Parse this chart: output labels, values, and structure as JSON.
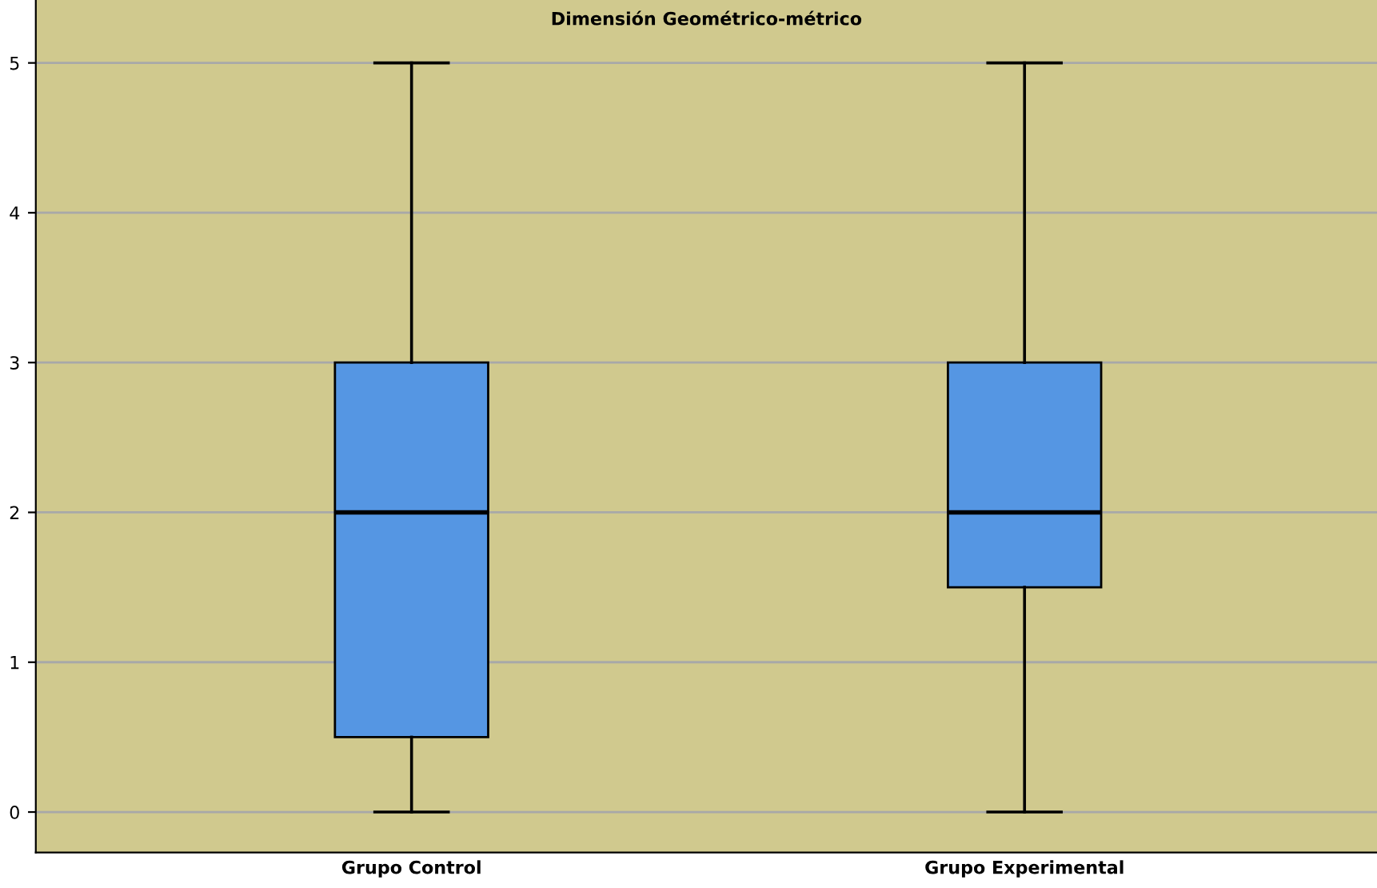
{
  "chart_data": {
    "type": "box",
    "title": "Dimensión Geométrico-métrico",
    "categories": [
      "Grupo Control",
      "Grupo Experimental"
    ],
    "series": [
      {
        "color": "#5596e3",
        "boxes": [
          {
            "low": 0,
            "q1": 0.5,
            "median": 2,
            "q3": 3,
            "high": 5
          },
          {
            "low": 0,
            "q1": 1.5,
            "median": 2,
            "q3": 3,
            "high": 5
          }
        ]
      }
    ],
    "ylim": [
      -0.27,
      5.42
    ],
    "yticks": [
      0,
      1,
      2,
      3,
      4,
      5
    ],
    "grid": "y"
  }
}
